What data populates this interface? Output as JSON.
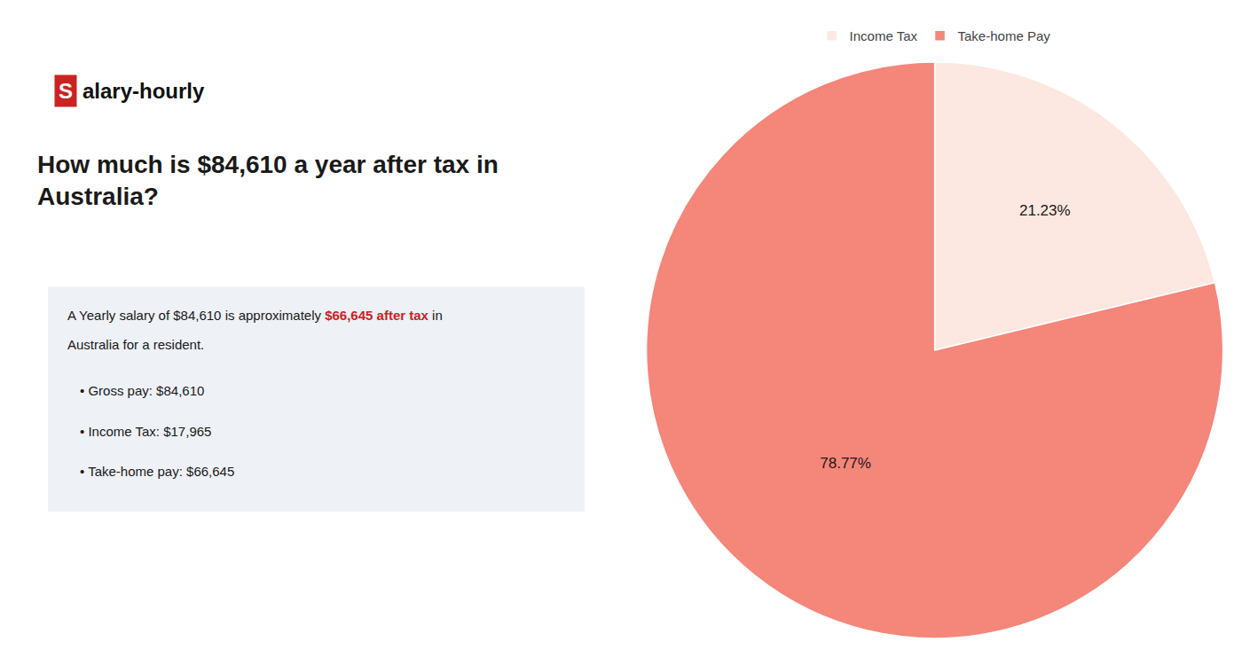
{
  "chart_data": {
    "type": "pie",
    "title": "How much is $84,610 a year after tax in\nAustralia?",
    "categories": [
      "Income Tax",
      "Take-home Pay"
    ],
    "values": [
      21.23,
      78.77
    ],
    "value_labels": [
      "21.23%",
      "78.77%"
    ],
    "colors": [
      "#fce8e0",
      "#f4867a"
    ],
    "data_labels": true,
    "legend": "top",
    "annotations": [
      {
        "text": "S",
        "color": "#cc2222"
      },
      {
        "text": "alary-hourly"
      },
      {
        "text": "A Yearly salary of $84,610 is approximately "
      },
      {
        "text": "$66,645 after tax",
        "color": "#cc2222"
      },
      {
        "text": " in"
      },
      {
        "text": "Australia for a resident."
      },
      {
        "text": "• Gross pay: $84,610"
      },
      {
        "text": "• Income Tax: $17,965"
      },
      {
        "text": "• Take-home pay: $66,645"
      }
    ]
  }
}
